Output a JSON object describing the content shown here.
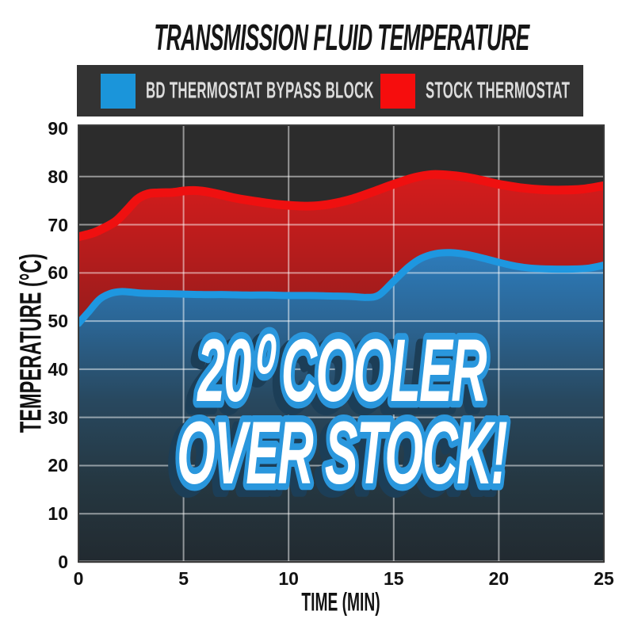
{
  "title": "TRANSMISSION FLUID TEMPERATURE",
  "legend": {
    "items": [
      {
        "label": "BD THERMOSTAT BYPASS BLOCK",
        "color": "#1b95da"
      },
      {
        "label": "STOCK THERMOSTAT",
        "color": "#f60d0d"
      }
    ]
  },
  "annotation": {
    "line1": "20⁰ COOLER",
    "line2": "OVER STOCK!",
    "fill": "#ffffff",
    "outline": "#2a97dd",
    "shadow": "#1c3e57"
  },
  "colors": {
    "page_background": "#ffffff",
    "legend_background": "#333333",
    "legend_text": "#dcdcdc",
    "plot_background": "#2c2c2c",
    "plot_border": "#3c3c3c",
    "grid_line": "rgba(255,255,255,0.5)",
    "zero_line": "#b5b5b5",
    "blue_line": "#1e97e0",
    "red_line": "#ef1010",
    "red_area_stops": [
      [
        0,
        "#e31818"
      ],
      [
        0.12,
        "#d41c1c"
      ],
      [
        0.42,
        "#9e1c1c"
      ],
      [
        0.72,
        "#541616"
      ],
      [
        1,
        "#2a1d1f"
      ]
    ],
    "blue_area_stops": [
      [
        0,
        "#3a9ad6"
      ],
      [
        0.3,
        "#2d7ab8"
      ],
      [
        0.46,
        "#2b6492"
      ],
      [
        0.63,
        "#28485f"
      ],
      [
        0.82,
        "#253741"
      ],
      [
        1,
        "#222a30"
      ]
    ]
  },
  "chart_data": {
    "type": "area",
    "title": "TRANSMISSION FLUID TEMPERATURE",
    "xlabel": "TIME (MIN)",
    "ylabel": "TEMPERATURE (°C)",
    "xlim": [
      0,
      25
    ],
    "ylim": [
      0,
      90
    ],
    "x_ticks": [
      0,
      5,
      10,
      15,
      20,
      25
    ],
    "y_ticks": [
      0,
      10,
      20,
      30,
      40,
      50,
      60,
      70,
      80,
      90
    ],
    "grid": true,
    "legend_position": "top",
    "x_unit": "minutes",
    "y_unit": "degrees Celsius",
    "series": [
      {
        "name": "BD THERMOSTAT BYPASS BLOCK",
        "color": "#1e97e0",
        "points": [
          [
            0,
            49.5
          ],
          [
            0.5,
            52
          ],
          [
            1,
            54.5
          ],
          [
            1.5,
            55.7
          ],
          [
            2,
            56.1
          ],
          [
            2.5,
            56
          ],
          [
            3,
            55.8
          ],
          [
            4,
            55.7
          ],
          [
            5,
            55.6
          ],
          [
            6,
            55.5
          ],
          [
            7,
            55.5
          ],
          [
            8,
            55.4
          ],
          [
            9,
            55.4
          ],
          [
            10,
            55.3
          ],
          [
            11,
            55.3
          ],
          [
            12,
            55.2
          ],
          [
            13,
            55.1
          ],
          [
            13.7,
            54.9
          ],
          [
            14.3,
            55.4
          ],
          [
            15,
            58.3
          ],
          [
            15.7,
            61.2
          ],
          [
            16.3,
            63
          ],
          [
            17,
            64
          ],
          [
            17.7,
            64.2
          ],
          [
            18.5,
            63.8
          ],
          [
            19.3,
            63
          ],
          [
            20,
            62.2
          ],
          [
            20.8,
            61.4
          ],
          [
            21.5,
            61
          ],
          [
            22.5,
            60.8
          ],
          [
            23.5,
            60.8
          ],
          [
            24.3,
            61
          ],
          [
            25,
            61.6
          ]
        ]
      },
      {
        "name": "STOCK THERMOSTAT",
        "color": "#ef1010",
        "points": [
          [
            0,
            67.5
          ],
          [
            0.7,
            68.3
          ],
          [
            1.3,
            69.5
          ],
          [
            1.8,
            70.8
          ],
          [
            2.3,
            73
          ],
          [
            2.8,
            75.3
          ],
          [
            3.3,
            76.4
          ],
          [
            3.8,
            76.6
          ],
          [
            4.5,
            76.7
          ],
          [
            5,
            77
          ],
          [
            5.5,
            77.1
          ],
          [
            6,
            76.9
          ],
          [
            6.7,
            76.3
          ],
          [
            7.5,
            75.5
          ],
          [
            8.5,
            74.8
          ],
          [
            9.5,
            74.2
          ],
          [
            10.5,
            73.9
          ],
          [
            11.2,
            73.9
          ],
          [
            12,
            74.3
          ],
          [
            13,
            75.3
          ],
          [
            14,
            76.8
          ],
          [
            15,
            78.4
          ],
          [
            16,
            79.8
          ],
          [
            16.8,
            80.4
          ],
          [
            17.6,
            80.3
          ],
          [
            18.4,
            79.9
          ],
          [
            19.2,
            79.2
          ],
          [
            20,
            78.4
          ],
          [
            21,
            77.7
          ],
          [
            22,
            77.3
          ],
          [
            23,
            77.2
          ],
          [
            24,
            77.4
          ],
          [
            25,
            78.1
          ]
        ]
      }
    ]
  }
}
